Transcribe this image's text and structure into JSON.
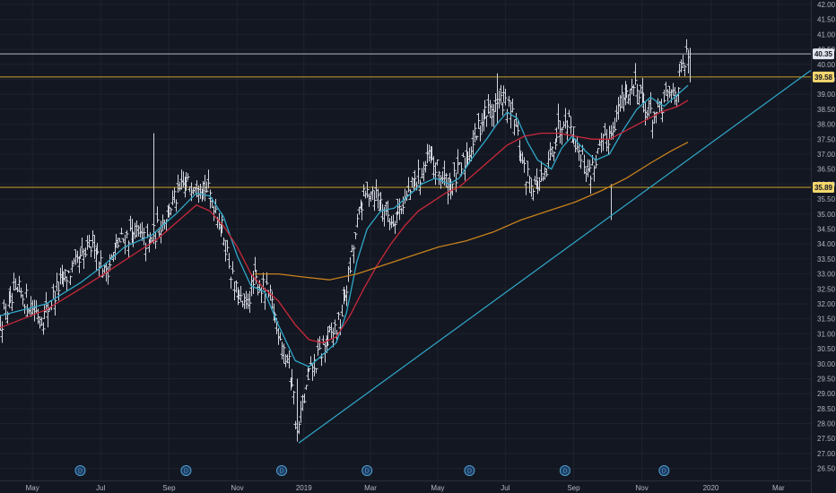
{
  "chart_data": {
    "type": "bar",
    "subtype": "ohlc",
    "symbol": "",
    "background": "#131722",
    "grid": true,
    "price_axis": {
      "position": "right",
      "ylim": [
        26.1,
        42.15
      ],
      "ticks": [
        "26.50",
        "27.00",
        "27.50",
        "28.00",
        "28.50",
        "29.00",
        "29.50",
        "30.00",
        "30.50",
        "31.00",
        "31.50",
        "32.00",
        "32.50",
        "33.00",
        "33.50",
        "34.00",
        "34.50",
        "35.00",
        "35.50",
        "36.00",
        "36.50",
        "37.00",
        "37.50",
        "38.00",
        "38.50",
        "39.00",
        "39.50",
        "40.00",
        "40.50",
        "41.00",
        "41.50",
        "42.00"
      ]
    },
    "time_axis": {
      "labels": [
        {
          "text": "May",
          "t": 0.1
        },
        {
          "text": "Jul",
          "t": 2.1
        },
        {
          "text": "Sep",
          "t": 4.1
        },
        {
          "text": "Nov",
          "t": 6.1
        },
        {
          "text": "2019",
          "t": 8.05
        },
        {
          "text": "Mar",
          "t": 10.0
        },
        {
          "text": "May",
          "t": 11.97
        },
        {
          "text": "Jul",
          "t": 13.95
        },
        {
          "text": "Sep",
          "t": 15.95
        },
        {
          "text": "Nov",
          "t": 17.95
        },
        {
          "text": "2020",
          "t": 19.97
        },
        {
          "text": "Mar",
          "t": 21.95
        }
      ],
      "t_range": [
        -0.85,
        22.9
      ]
    },
    "horizontal_lines": [
      {
        "value": 40.35,
        "color": "#b2b5be",
        "label": "40.35"
      },
      {
        "value": 39.58,
        "color": "#c9a227",
        "label": "39.58"
      },
      {
        "value": 35.89,
        "color": "#c9a227",
        "label": "35.89"
      }
    ],
    "trend_line": {
      "color": "#2fa8c9",
      "points": [
        [
          7.9,
          27.35
        ],
        [
          22.9,
          39.8
        ]
      ]
    },
    "dividend_markers": {
      "label": "D",
      "t": [
        1.5,
        4.6,
        7.4,
        9.9,
        12.9,
        15.7,
        18.6
      ]
    },
    "series": [
      {
        "kind": "price",
        "color": "#d1d4dc",
        "path": [
          [
            -0.85,
            31.4
          ],
          [
            -0.3,
            32.4
          ],
          [
            0.4,
            31.5
          ],
          [
            0.9,
            32.7
          ],
          [
            1.5,
            33.4
          ],
          [
            1.9,
            34.1
          ],
          [
            2.2,
            33.0
          ],
          [
            2.6,
            34.0
          ],
          [
            3.0,
            34.4
          ],
          [
            3.5,
            34.0
          ],
          [
            4.0,
            35.0
          ],
          [
            4.5,
            35.9
          ],
          [
            5.0,
            36.2
          ],
          [
            5.4,
            35.4
          ],
          [
            5.7,
            34.3
          ],
          [
            6.0,
            32.5
          ],
          [
            6.3,
            31.8
          ],
          [
            6.6,
            32.8
          ],
          [
            7.0,
            32.3
          ],
          [
            7.3,
            31.2
          ],
          [
            7.7,
            29.5
          ],
          [
            7.85,
            27.6
          ],
          [
            8.0,
            28.6
          ],
          [
            8.2,
            29.6
          ],
          [
            8.5,
            30.3
          ],
          [
            8.8,
            30.9
          ],
          [
            9.1,
            31.4
          ],
          [
            9.4,
            33.2
          ],
          [
            9.7,
            35.3
          ],
          [
            10.0,
            35.9
          ],
          [
            10.3,
            35.4
          ],
          [
            10.6,
            34.8
          ],
          [
            11.0,
            35.5
          ],
          [
            11.4,
            36.2
          ],
          [
            11.7,
            36.8
          ],
          [
            12.0,
            36.4
          ],
          [
            12.3,
            35.9
          ],
          [
            12.6,
            36.4
          ],
          [
            13.0,
            37.4
          ],
          [
            13.3,
            38.3
          ],
          [
            13.6,
            38.6
          ],
          [
            13.9,
            38.8
          ],
          [
            14.2,
            38.1
          ],
          [
            14.5,
            36.4
          ],
          [
            14.8,
            36.0
          ],
          [
            15.1,
            36.1
          ],
          [
            15.4,
            37.6
          ],
          [
            15.7,
            38.4
          ],
          [
            16.0,
            37.5
          ],
          [
            16.4,
            36.3
          ],
          [
            16.7,
            37.1
          ],
          [
            17.0,
            37.7
          ],
          [
            17.4,
            38.9
          ],
          [
            17.8,
            39.4
          ],
          [
            18.1,
            38.4
          ],
          [
            18.4,
            38.3
          ],
          [
            18.7,
            38.9
          ],
          [
            19.0,
            39.3
          ],
          [
            19.3,
            40.4
          ]
        ]
      },
      {
        "kind": "ma-fast",
        "color": "#2fa8c9",
        "path": [
          [
            -0.85,
            31.6
          ],
          [
            0.5,
            32.0
          ],
          [
            1.5,
            32.7
          ],
          [
            2.2,
            33.3
          ],
          [
            2.8,
            33.9
          ],
          [
            3.6,
            34.3
          ],
          [
            4.3,
            35.0
          ],
          [
            4.9,
            35.7
          ],
          [
            5.3,
            35.6
          ],
          [
            5.7,
            34.9
          ],
          [
            6.1,
            33.6
          ],
          [
            6.5,
            32.6
          ],
          [
            6.9,
            32.4
          ],
          [
            7.3,
            31.3
          ],
          [
            7.8,
            30.1
          ],
          [
            8.2,
            29.9
          ],
          [
            8.6,
            30.3
          ],
          [
            9.0,
            30.7
          ],
          [
            9.3,
            31.7
          ],
          [
            9.6,
            33.4
          ],
          [
            9.9,
            34.5
          ],
          [
            10.3,
            35.1
          ],
          [
            10.7,
            35.2
          ],
          [
            11.1,
            35.6
          ],
          [
            11.5,
            36.0
          ],
          [
            11.9,
            36.2
          ],
          [
            12.3,
            36.0
          ],
          [
            12.6,
            36.2
          ],
          [
            13.0,
            36.9
          ],
          [
            13.4,
            37.5
          ],
          [
            13.7,
            38.0
          ],
          [
            14.0,
            38.4
          ],
          [
            14.3,
            38.2
          ],
          [
            14.6,
            37.4
          ],
          [
            14.9,
            36.8
          ],
          [
            15.3,
            36.5
          ],
          [
            15.6,
            37.2
          ],
          [
            15.9,
            37.6
          ],
          [
            16.3,
            37.1
          ],
          [
            16.6,
            36.8
          ],
          [
            17.0,
            37.0
          ],
          [
            17.4,
            37.8
          ],
          [
            17.8,
            38.5
          ],
          [
            18.2,
            38.9
          ],
          [
            18.6,
            38.6
          ],
          [
            19.0,
            39.0
          ],
          [
            19.3,
            39.3
          ]
        ]
      },
      {
        "kind": "ma-mid",
        "color": "#c9283a",
        "path": [
          [
            -0.85,
            31.2
          ],
          [
            0.5,
            31.8
          ],
          [
            1.5,
            32.5
          ],
          [
            2.2,
            33.0
          ],
          [
            3.0,
            33.6
          ],
          [
            3.8,
            34.2
          ],
          [
            4.4,
            34.8
          ],
          [
            4.9,
            35.3
          ],
          [
            5.3,
            35.1
          ],
          [
            5.7,
            34.6
          ],
          [
            6.1,
            33.9
          ],
          [
            6.5,
            33.0
          ],
          [
            6.9,
            32.5
          ],
          [
            7.3,
            32.1
          ],
          [
            7.8,
            31.3
          ],
          [
            8.2,
            30.8
          ],
          [
            8.6,
            30.7
          ],
          [
            9.0,
            30.9
          ],
          [
            9.4,
            31.6
          ],
          [
            9.8,
            32.5
          ],
          [
            10.2,
            33.3
          ],
          [
            10.6,
            34.0
          ],
          [
            11.0,
            34.6
          ],
          [
            11.4,
            35.1
          ],
          [
            11.8,
            35.4
          ],
          [
            12.2,
            35.7
          ],
          [
            12.6,
            35.9
          ],
          [
            13.0,
            36.3
          ],
          [
            13.5,
            36.8
          ],
          [
            14.0,
            37.3
          ],
          [
            14.5,
            37.6
          ],
          [
            15.0,
            37.7
          ],
          [
            15.5,
            37.7
          ],
          [
            16.0,
            37.6
          ],
          [
            16.5,
            37.5
          ],
          [
            17.0,
            37.5
          ],
          [
            17.5,
            37.8
          ],
          [
            18.0,
            38.1
          ],
          [
            18.5,
            38.4
          ],
          [
            19.0,
            38.6
          ],
          [
            19.3,
            38.8
          ]
        ]
      },
      {
        "kind": "ma-slow",
        "color": "#c8811c",
        "path": [
          [
            6.6,
            33.0
          ],
          [
            7.3,
            33.0
          ],
          [
            8.0,
            32.9
          ],
          [
            8.8,
            32.8
          ],
          [
            9.6,
            33.0
          ],
          [
            10.4,
            33.3
          ],
          [
            11.2,
            33.6
          ],
          [
            12.0,
            33.9
          ],
          [
            12.8,
            34.1
          ],
          [
            13.6,
            34.4
          ],
          [
            14.4,
            34.8
          ],
          [
            15.2,
            35.1
          ],
          [
            16.0,
            35.4
          ],
          [
            16.8,
            35.8
          ],
          [
            17.5,
            36.2
          ],
          [
            18.2,
            36.7
          ],
          [
            18.8,
            37.1
          ],
          [
            19.3,
            37.4
          ]
        ]
      }
    ]
  }
}
